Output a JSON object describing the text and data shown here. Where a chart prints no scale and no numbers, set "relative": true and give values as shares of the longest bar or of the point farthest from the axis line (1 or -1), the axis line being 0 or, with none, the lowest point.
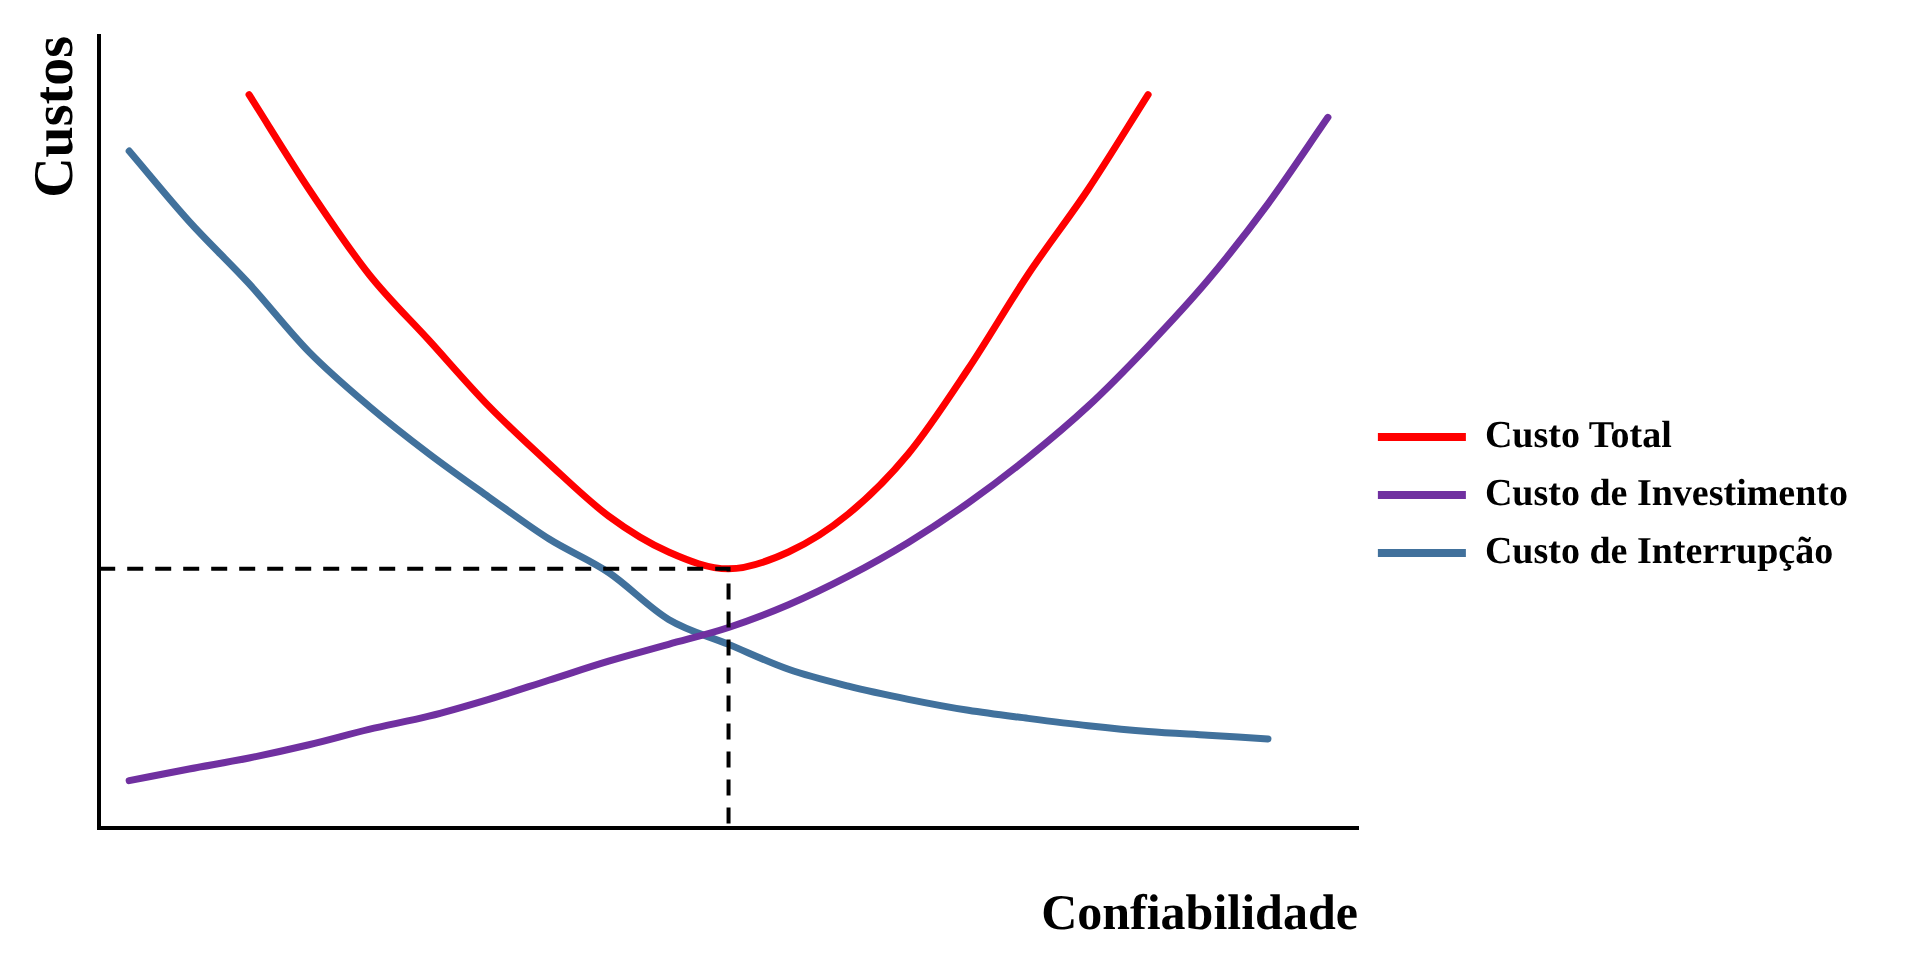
{
  "chart_data": {
    "type": "line",
    "relative": true,
    "xlabel": "Confiabilidade",
    "ylabel": "Custos",
    "legend": "right",
    "marker": "none",
    "line_style": "solid",
    "categories": [
      null,
      null,
      null,
      null,
      null,
      null,
      null,
      null,
      null,
      null,
      null,
      null,
      null,
      null,
      null,
      null,
      null,
      null,
      null,
      null,
      null
    ],
    "series": [
      {
        "name": "Custo Total",
        "color": "#ff0000",
        "values": [
          null,
          null,
          1.0,
          0.871,
          0.755,
          0.665,
          0.575,
          0.497,
          0.425,
          0.376,
          0.353,
          0.376,
          0.428,
          0.51,
          0.626,
          0.755,
          0.871,
          1.0,
          null,
          null,
          null
        ]
      },
      {
        "name": "Custo de Investimento",
        "color": "#7030a0",
        "values": [
          0.064,
          0.08,
          0.095,
          0.113,
          0.134,
          0.152,
          0.175,
          0.201,
          0.227,
          0.25,
          0.273,
          0.304,
          0.343,
          0.389,
          0.443,
          0.505,
          0.575,
          0.657,
          0.747,
          0.851,
          0.969
        ]
      },
      {
        "name": "Custo de Interrupção",
        "color": "#41719c",
        "values": [
          0.923,
          0.827,
          0.742,
          0.649,
          0.575,
          0.51,
          0.451,
          0.394,
          0.348,
          0.284,
          0.25,
          0.216,
          0.193,
          0.175,
          0.16,
          0.149,
          0.139,
          0.131,
          0.126,
          0.121,
          null
        ]
      }
    ],
    "ref_lines": [
      {
        "axis": "y",
        "value": 0.353,
        "color": "#000000",
        "line_style": "dashed"
      }
    ]
  }
}
